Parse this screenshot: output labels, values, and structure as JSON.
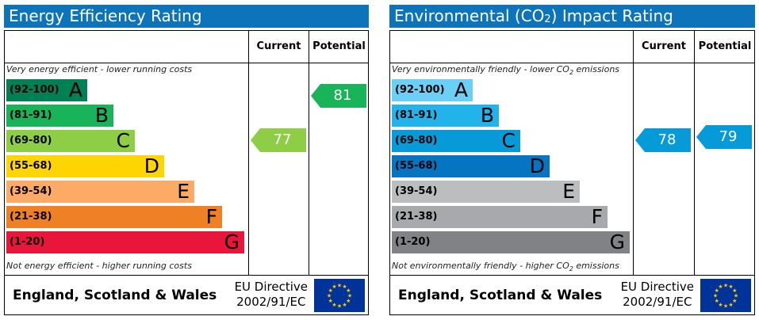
{
  "chart_data": [
    {
      "type": "bar",
      "title": "Energy Efficiency Rating",
      "columns": [
        "Current",
        "Potential"
      ],
      "top_note": "Very energy efficient - lower running costs",
      "bottom_note": "Not energy efficient - higher running costs",
      "bands": [
        {
          "range": "(92-100)",
          "letter": "A",
          "color": "#008054"
        },
        {
          "range": "(81-91)",
          "letter": "B",
          "color": "#19b459"
        },
        {
          "range": "(69-80)",
          "letter": "C",
          "color": "#8dce46"
        },
        {
          "range": "(55-68)",
          "letter": "D",
          "color": "#ffd500"
        },
        {
          "range": "(39-54)",
          "letter": "E",
          "color": "#fcaa65"
        },
        {
          "range": "(21-38)",
          "letter": "F",
          "color": "#ef8023"
        },
        {
          "range": "(1-20)",
          "letter": "G",
          "color": "#e9153b"
        }
      ],
      "current": {
        "value": 77,
        "color": "#8dce46"
      },
      "potential": {
        "value": 81,
        "color": "#19b459"
      },
      "region": "England, Scotland & Wales",
      "directive_line1": "EU Directive",
      "directive_line2": "2002/91/EC"
    },
    {
      "type": "bar",
      "title_prefix": "Environmental (CO",
      "title_sub": "2",
      "title_suffix": ") Impact Rating",
      "columns": [
        "Current",
        "Potential"
      ],
      "top_note_prefix": "Very environmentally friendly - lower CO",
      "top_note_sub": "2",
      "top_note_suffix": " emissions",
      "bottom_note_prefix": "Not environmentally friendly - higher CO",
      "bottom_note_sub": "2",
      "bottom_note_suffix": " emissions",
      "bands": [
        {
          "range": "(92-100)",
          "letter": "A",
          "color": "#6ccff6"
        },
        {
          "range": "(81-91)",
          "letter": "B",
          "color": "#22b3eb"
        },
        {
          "range": "(69-80)",
          "letter": "C",
          "color": "#079ad9"
        },
        {
          "range": "(55-68)",
          "letter": "D",
          "color": "#0575c1"
        },
        {
          "range": "(39-54)",
          "letter": "E",
          "color": "#bbbdbf"
        },
        {
          "range": "(21-38)",
          "letter": "F",
          "color": "#a7a9ac"
        },
        {
          "range": "(1-20)",
          "letter": "G",
          "color": "#808285"
        }
      ],
      "current": {
        "value": 78,
        "color": "#079ad9"
      },
      "potential": {
        "value": 79,
        "color": "#079ad9"
      },
      "region": "England, Scotland & Wales",
      "directive_line1": "EU Directive",
      "directive_line2": "2002/91/EC"
    }
  ]
}
